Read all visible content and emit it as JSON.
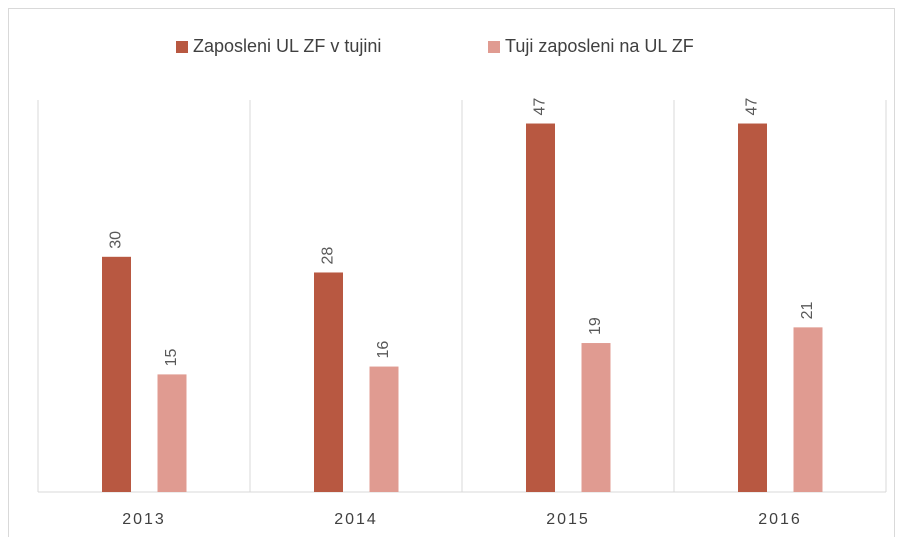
{
  "chart_data": {
    "type": "bar",
    "categories": [
      "2013",
      "2014",
      "2015",
      "2016"
    ],
    "series": [
      {
        "name": "Zaposleni UL ZF v tujini",
        "color": "#b85841",
        "values": [
          30,
          28,
          47,
          47
        ]
      },
      {
        "name": "Tuji zaposleni na UL ZF",
        "color": "#e09b91",
        "values": [
          15,
          16,
          19,
          21
        ]
      }
    ],
    "ylim": [
      0,
      50
    ],
    "legend": "top"
  }
}
